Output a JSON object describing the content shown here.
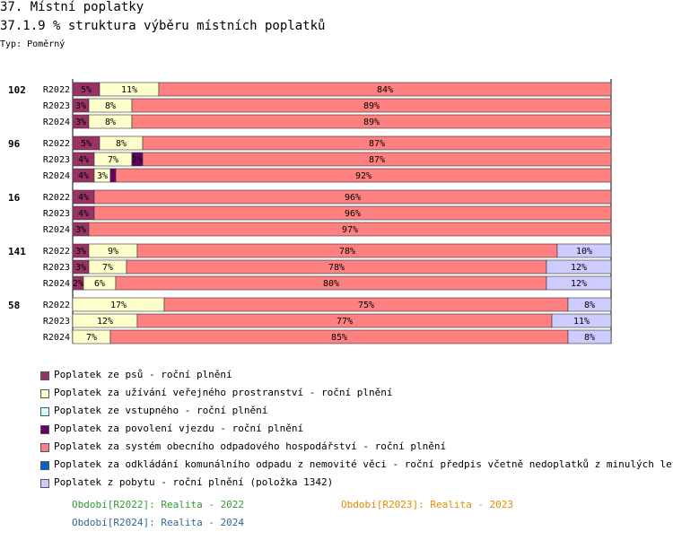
{
  "header": {
    "title": "37. Místní poplatky",
    "subtitle": "37.1.9 % struktura výběru místních poplatků",
    "type_label": "Typ: Poměrný"
  },
  "colors": {
    "psu": "#993366",
    "verejne_prostranstvi": "#ffffcc",
    "vstupne": "#ccffff",
    "vjezd": "#660066",
    "odpad": "#ff8080",
    "odkladani_odpadu": "#0066cc",
    "pobyt": "#ccccff"
  },
  "chart_data": {
    "type": "bar",
    "orientation": "horizontal",
    "stacked": "percent",
    "series": [
      {
        "key": "psu",
        "name": "Poplatek ze psů - roční plnění"
      },
      {
        "key": "verejne_prostranstvi",
        "name": "Poplatek za užívání veřejného prostranství - roční plnění"
      },
      {
        "key": "vstupne",
        "name": "Poplatek ze vstupného - roční plnění"
      },
      {
        "key": "vjezd",
        "name": "Poplatek za povolení vjezdu - roční plnění"
      },
      {
        "key": "odpad",
        "name": "Poplatek za systém obecního odpadového hospodářství - roční plnění"
      },
      {
        "key": "odkladani_odpadu",
        "name": "Poplatek za odkládání komunálního odpadu z nemovité věci - roční předpis včetně nedoplatků z minulých let"
      },
      {
        "key": "pobyt",
        "name": "Poplatek z pobytu - roční plnění (položka 1342)"
      }
    ],
    "groups": [
      {
        "label": "102",
        "bars": [
          {
            "year": "R2022",
            "values": [
              5,
              11,
              0,
              0,
              84,
              0,
              0
            ]
          },
          {
            "year": "R2023",
            "values": [
              3,
              8,
              0,
              0,
              89,
              0,
              0
            ]
          },
          {
            "year": "R2024",
            "values": [
              3,
              8,
              0,
              0,
              89,
              0,
              0
            ]
          }
        ]
      },
      {
        "label": "96",
        "bars": [
          {
            "year": "R2022",
            "values": [
              5,
              8,
              0,
              0,
              87,
              0,
              0
            ]
          },
          {
            "year": "R2023",
            "values": [
              4,
              7,
              0,
              2,
              87,
              0,
              0
            ]
          },
          {
            "year": "R2024",
            "values": [
              4,
              3,
              0,
              1,
              92,
              0,
              0
            ]
          }
        ]
      },
      {
        "label": "16",
        "bars": [
          {
            "year": "R2022",
            "values": [
              4,
              0,
              0,
              0,
              96,
              0,
              0
            ]
          },
          {
            "year": "R2023",
            "values": [
              4,
              0,
              0,
              0,
              96,
              0,
              0
            ]
          },
          {
            "year": "R2024",
            "values": [
              3,
              0,
              0,
              0,
              97,
              0,
              0
            ]
          }
        ]
      },
      {
        "label": "141",
        "bars": [
          {
            "year": "R2022",
            "values": [
              3,
              9,
              0,
              0,
              78,
              0,
              10
            ]
          },
          {
            "year": "R2023",
            "values": [
              3,
              7,
              0,
              0,
              78,
              0,
              12
            ]
          },
          {
            "year": "R2024",
            "values": [
              2,
              6,
              0,
              0,
              80,
              0,
              12
            ]
          }
        ]
      },
      {
        "label": "58",
        "bars": [
          {
            "year": "R2022",
            "values": [
              0,
              17,
              0,
              0,
              75,
              0,
              8
            ]
          },
          {
            "year": "R2023",
            "values": [
              0,
              12,
              0,
              0,
              77,
              0,
              11
            ]
          },
          {
            "year": "R2024",
            "values": [
              0,
              7,
              0,
              0,
              85,
              0,
              8
            ]
          }
        ]
      }
    ],
    "label_threshold": 2
  },
  "periods": [
    {
      "text": "Období[R2022]: Realita - 2022",
      "color": "#339933"
    },
    {
      "text": "Období[R2023]: Realita - 2023",
      "color": "#e68a00"
    },
    {
      "text": "Období[R2024]: Realita - 2024",
      "color": "#336699"
    }
  ]
}
